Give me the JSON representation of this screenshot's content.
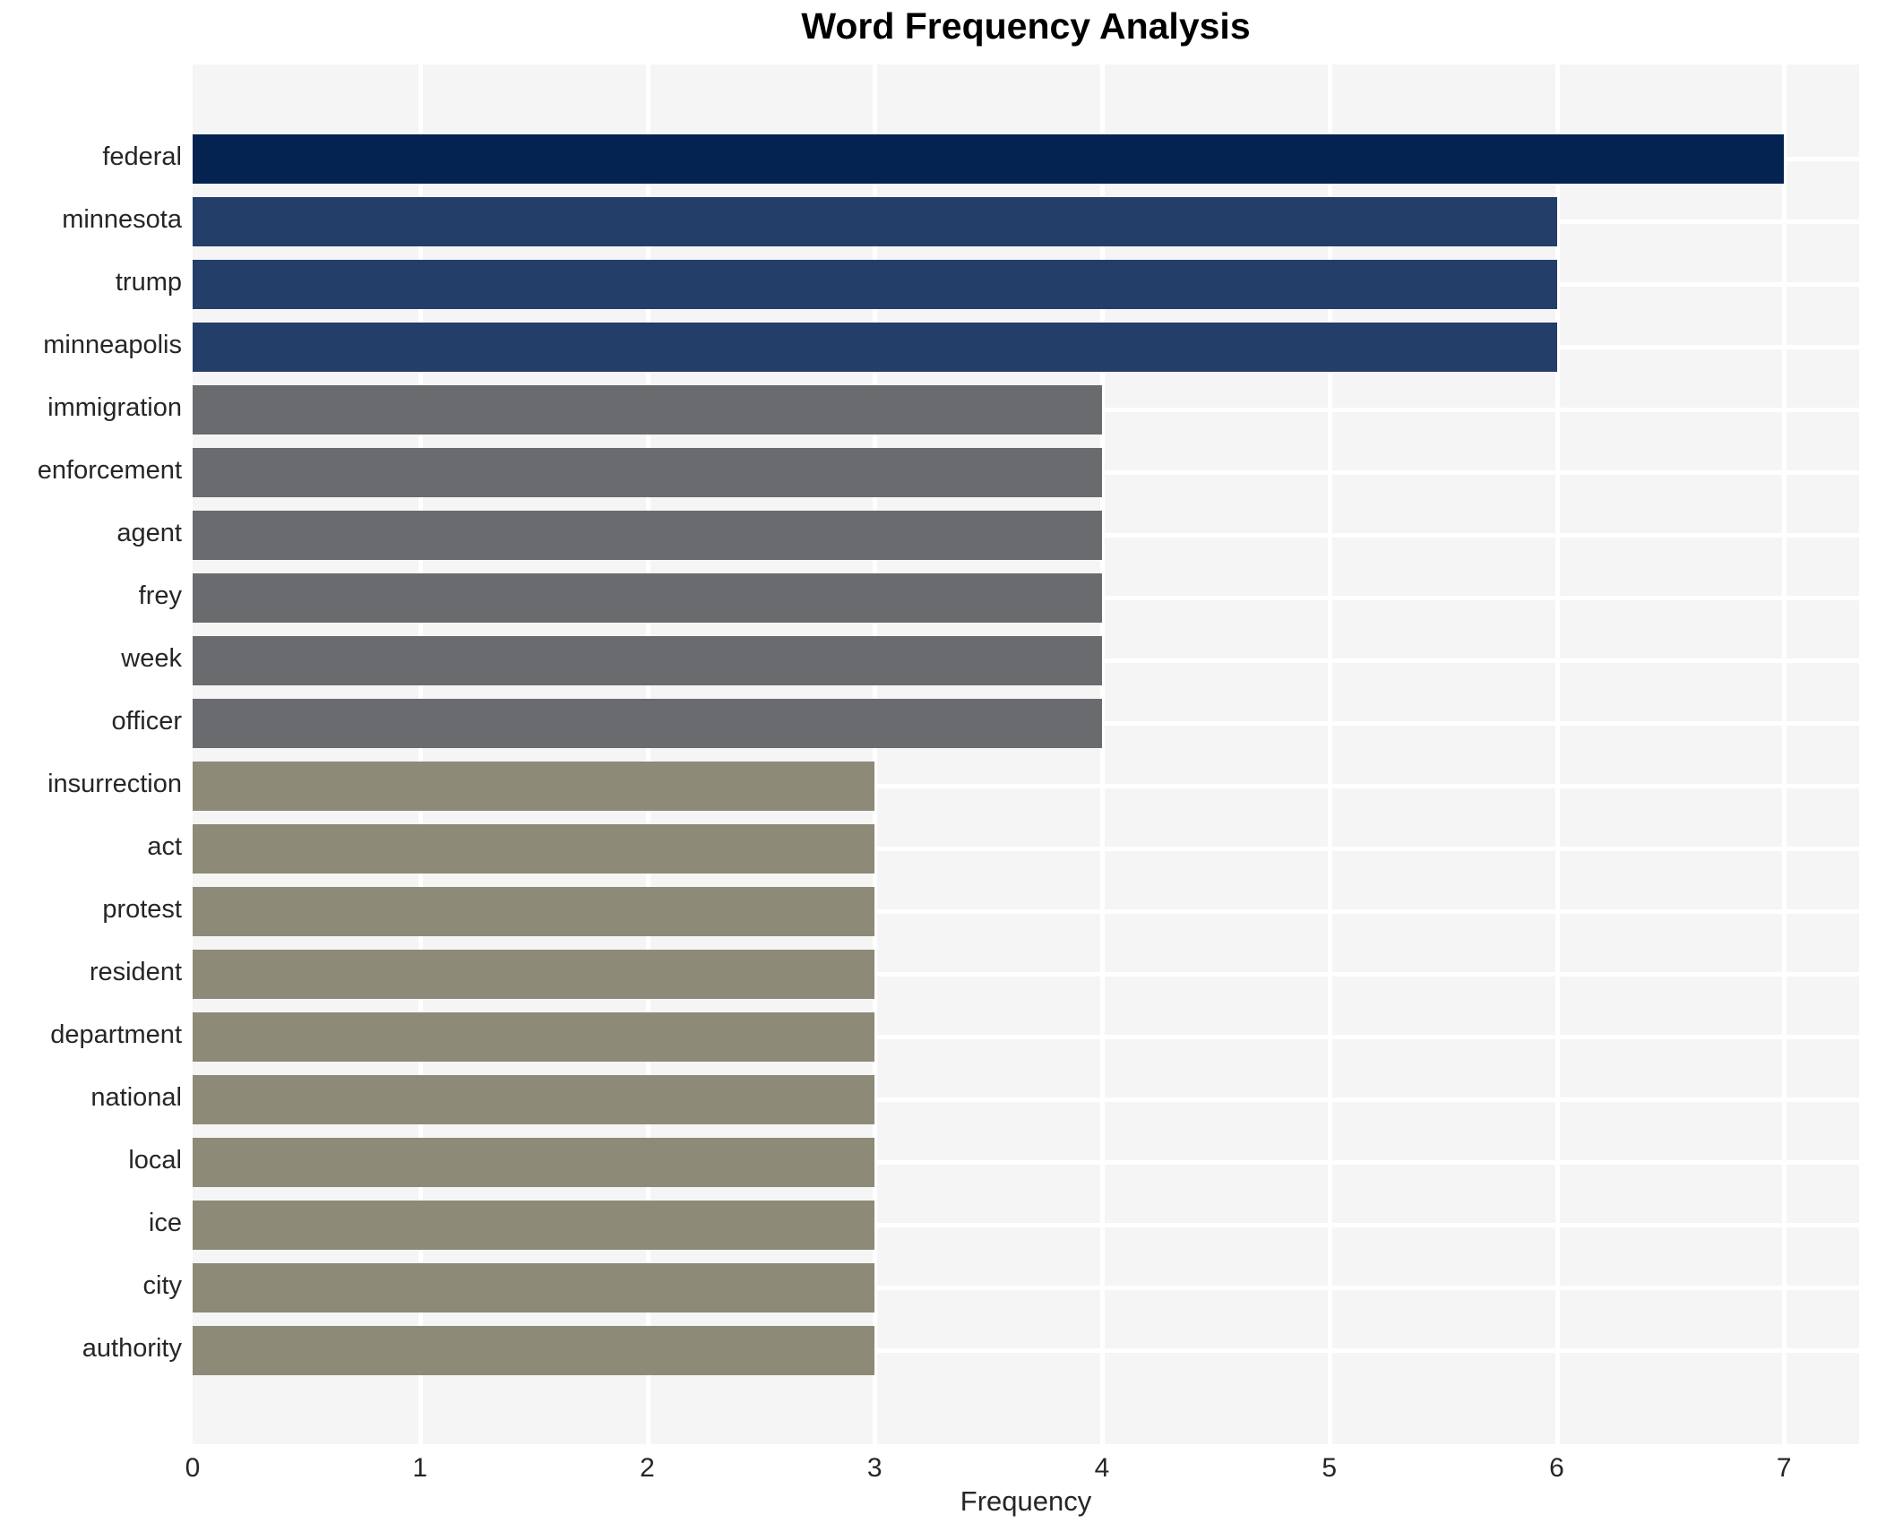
{
  "chart_data": {
    "type": "bar",
    "orientation": "horizontal",
    "title": "Word Frequency Analysis",
    "xlabel": "Frequency",
    "ylabel": "",
    "categories": [
      "federal",
      "minnesota",
      "trump",
      "minneapolis",
      "immigration",
      "enforcement",
      "agent",
      "frey",
      "week",
      "officer",
      "insurrection",
      "act",
      "protest",
      "resident",
      "department",
      "national",
      "local",
      "ice",
      "city",
      "authority"
    ],
    "values": [
      7,
      6,
      6,
      6,
      4,
      4,
      4,
      4,
      4,
      4,
      3,
      3,
      3,
      3,
      3,
      3,
      3,
      3,
      3,
      3
    ],
    "bar_colors": [
      "#052350",
      "#233e69",
      "#233e69",
      "#233e69",
      "#6a6b6e",
      "#6a6b6e",
      "#6a6b6e",
      "#6a6b6e",
      "#6a6b6e",
      "#6a6b6e",
      "#8e8a78",
      "#8e8a78",
      "#8e8a78",
      "#8e8a78",
      "#8e8a78",
      "#8e8a78",
      "#8e8a78",
      "#8e8a78",
      "#8e8a78",
      "#8e8a78"
    ],
    "xticks": [
      "0",
      "1",
      "2",
      "3",
      "4",
      "5",
      "6",
      "7"
    ],
    "xlim": [
      0,
      7.33
    ],
    "grid": true,
    "legend": "none",
    "plot_background": "#f5f5f6",
    "grid_color": "#ffffff",
    "figure_background": "#ffffff",
    "text_color": "#262626"
  }
}
